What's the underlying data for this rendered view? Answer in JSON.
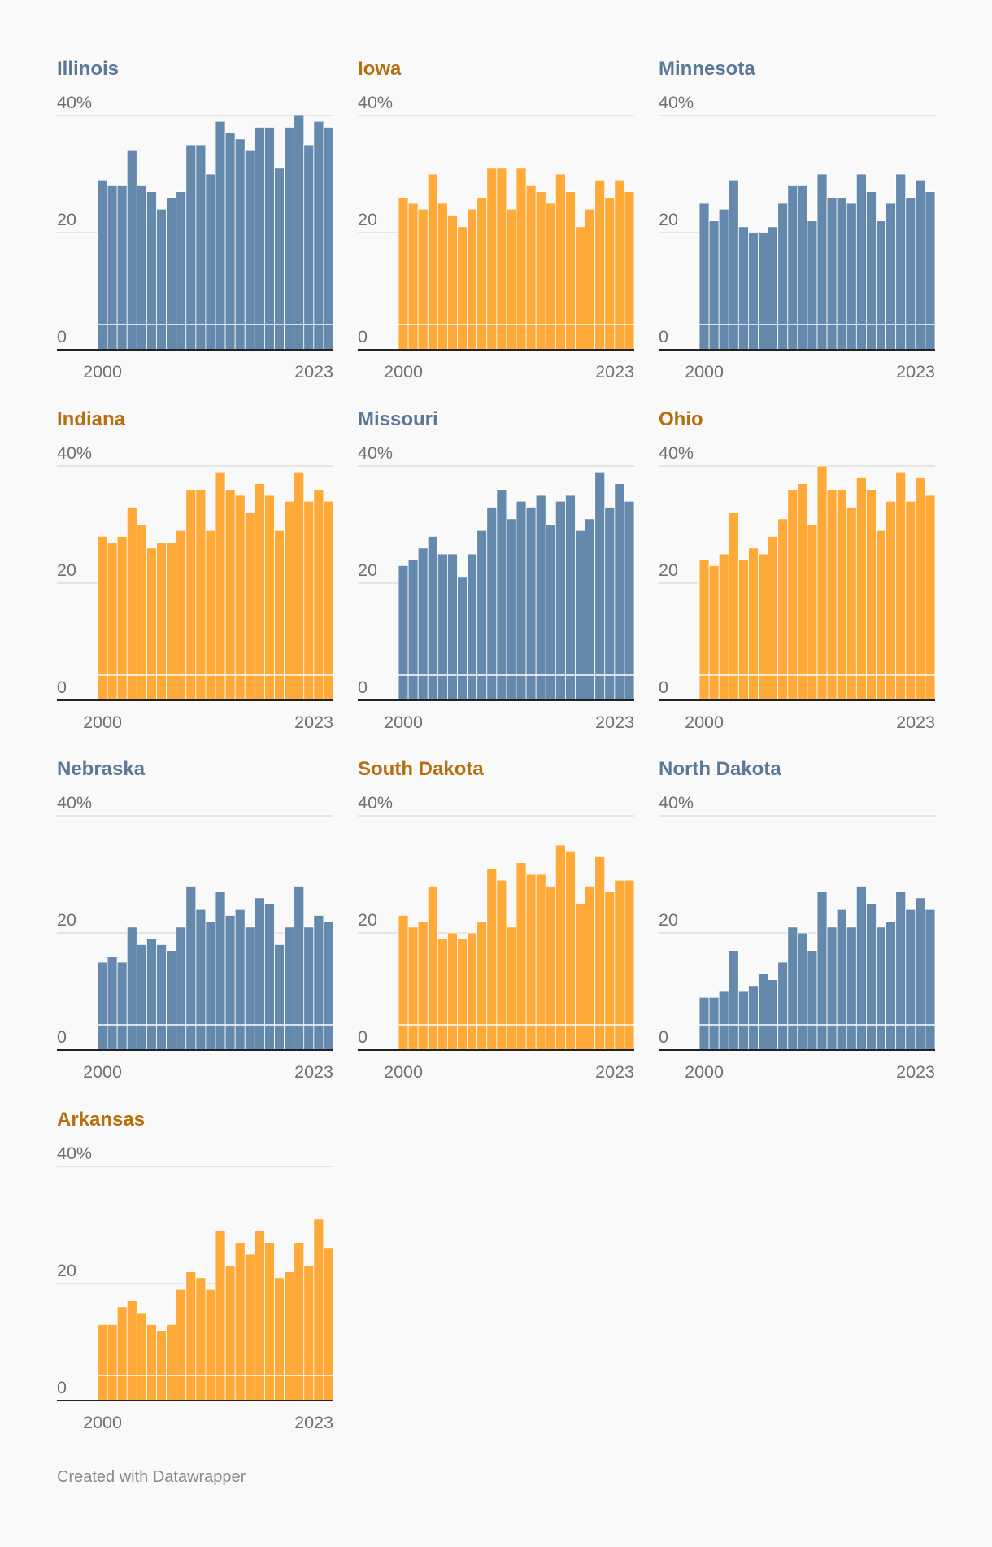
{
  "colors": {
    "blue": "#6589ad",
    "orange": "#ffa939",
    "blue_title": "#5a7898",
    "orange_title": "#b76e0d",
    "grid": "#dedede",
    "axis": "#222222"
  },
  "footer": "Created with Datawrapper",
  "chart_data": [
    {
      "type": "bar",
      "title": "Illinois",
      "color": "blue",
      "ylabels": [
        "40%",
        "20",
        "0"
      ],
      "xlabels": [
        "2000",
        "2023"
      ],
      "ylim": [
        0,
        40
      ],
      "values": [
        29,
        28,
        28,
        34,
        28,
        27,
        24,
        26,
        27,
        35,
        35,
        30,
        39,
        37,
        36,
        34,
        38,
        38,
        31,
        38,
        40,
        35,
        39,
        38
      ]
    },
    {
      "type": "bar",
      "title": "Iowa",
      "color": "orange",
      "ylabels": [
        "40%",
        "20",
        "0"
      ],
      "xlabels": [
        "2000",
        "2023"
      ],
      "ylim": [
        0,
        40
      ],
      "values": [
        26,
        25,
        24,
        30,
        25,
        23,
        21,
        24,
        26,
        31,
        31,
        24,
        31,
        28,
        27,
        25,
        30,
        27,
        21,
        24,
        29,
        26,
        29,
        27
      ]
    },
    {
      "type": "bar",
      "title": "Minnesota",
      "color": "blue",
      "ylabels": [
        "40%",
        "20",
        "0"
      ],
      "xlabels": [
        "2000",
        "2023"
      ],
      "ylim": [
        0,
        40
      ],
      "values": [
        25,
        22,
        24,
        29,
        21,
        20,
        20,
        21,
        25,
        28,
        28,
        22,
        30,
        26,
        26,
        25,
        30,
        27,
        22,
        25,
        30,
        26,
        29,
        27
      ]
    },
    {
      "type": "bar",
      "title": "Indiana",
      "color": "orange",
      "ylabels": [
        "40%",
        "20",
        "0"
      ],
      "xlabels": [
        "2000",
        "2023"
      ],
      "ylim": [
        0,
        40
      ],
      "values": [
        28,
        27,
        28,
        33,
        30,
        26,
        27,
        27,
        29,
        36,
        36,
        29,
        39,
        36,
        35,
        32,
        37,
        35,
        29,
        34,
        39,
        34,
        36,
        34
      ]
    },
    {
      "type": "bar",
      "title": "Missouri",
      "color": "blue",
      "ylabels": [
        "40%",
        "20",
        "0"
      ],
      "xlabels": [
        "2000",
        "2023"
      ],
      "ylim": [
        0,
        40
      ],
      "values": [
        23,
        24,
        26,
        28,
        25,
        25,
        21,
        25,
        29,
        33,
        36,
        31,
        34,
        33,
        35,
        30,
        34,
        35,
        29,
        31,
        39,
        33,
        37,
        34
      ]
    },
    {
      "type": "bar",
      "title": "Ohio",
      "color": "orange",
      "ylabels": [
        "40%",
        "20",
        "0"
      ],
      "xlabels": [
        "2000",
        "2023"
      ],
      "ylim": [
        0,
        40
      ],
      "values": [
        24,
        23,
        25,
        32,
        24,
        26,
        25,
        28,
        31,
        36,
        37,
        30,
        40,
        36,
        36,
        33,
        38,
        36,
        29,
        34,
        39,
        34,
        38,
        35
      ]
    },
    {
      "type": "bar",
      "title": "Nebraska",
      "color": "blue",
      "ylabels": [
        "40%",
        "20",
        "0"
      ],
      "xlabels": [
        "2000",
        "2023"
      ],
      "ylim": [
        0,
        40
      ],
      "values": [
        15,
        16,
        15,
        21,
        18,
        19,
        18,
        17,
        21,
        28,
        24,
        22,
        27,
        23,
        24,
        21,
        26,
        25,
        18,
        21,
        28,
        21,
        23,
        22
      ]
    },
    {
      "type": "bar",
      "title": "South Dakota",
      "color": "orange",
      "ylabels": [
        "40%",
        "20",
        "0"
      ],
      "xlabels": [
        "2000",
        "2023"
      ],
      "ylim": [
        0,
        40
      ],
      "values": [
        23,
        21,
        22,
        28,
        19,
        20,
        19,
        20,
        22,
        31,
        29,
        21,
        32,
        30,
        30,
        28,
        35,
        34,
        25,
        28,
        33,
        27,
        29,
        29
      ]
    },
    {
      "type": "bar",
      "title": "North Dakota",
      "color": "blue",
      "ylabels": [
        "40%",
        "20",
        "0"
      ],
      "xlabels": [
        "2000",
        "2023"
      ],
      "ylim": [
        0,
        40
      ],
      "values": [
        9,
        9,
        10,
        17,
        10,
        11,
        13,
        12,
        15,
        21,
        20,
        17,
        27,
        21,
        24,
        21,
        28,
        25,
        21,
        22,
        27,
        24,
        26,
        24
      ]
    },
    {
      "type": "bar",
      "title": "Arkansas",
      "color": "orange",
      "ylabels": [
        "40%",
        "20",
        "0"
      ],
      "xlabels": [
        "2000",
        "2023"
      ],
      "ylim": [
        0,
        40
      ],
      "values": [
        13,
        13,
        16,
        17,
        15,
        13,
        12,
        13,
        19,
        22,
        21,
        19,
        29,
        23,
        27,
        25,
        29,
        27,
        21,
        22,
        27,
        23,
        31,
        26
      ]
    }
  ]
}
